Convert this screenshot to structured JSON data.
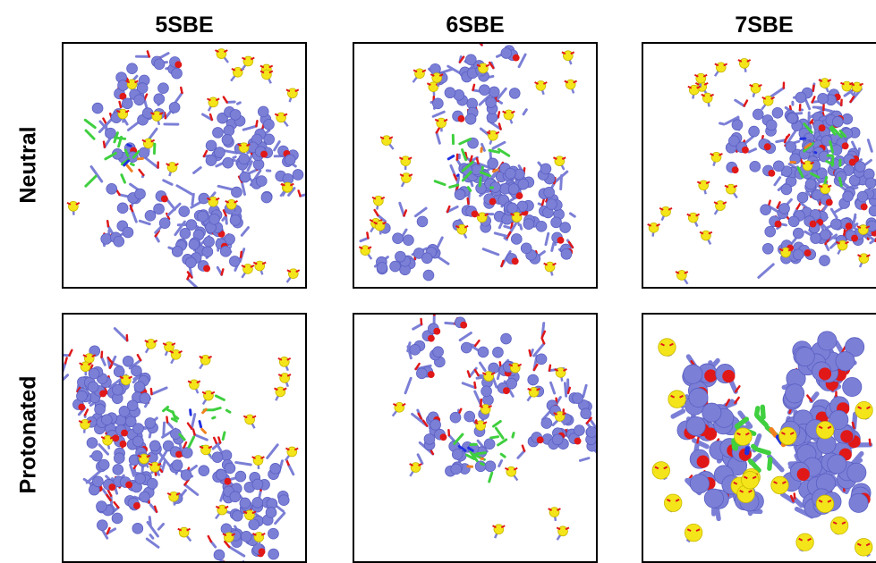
{
  "columns": [
    "5SBE",
    "6SBE",
    "7SBE"
  ],
  "rows": [
    "Neutral",
    "Protonated"
  ],
  "colors": {
    "carbon_bead": "#7b7fd6",
    "carbon_bead_dark": "#5a5fc2",
    "oxygen": "#e01818",
    "sulfur": "#f3e51a",
    "ligand": "#3fcf3f",
    "phosphate": "#f08020",
    "nitrogen": "#2030e0",
    "hydrogen": "#f0f0f0",
    "border": "#000000"
  },
  "panels": [
    {
      "id": "neutral-5sbe",
      "row": "Neutral",
      "column": "5SBE"
    },
    {
      "id": "neutral-6sbe",
      "row": "Neutral",
      "column": "6SBE"
    },
    {
      "id": "neutral-7sbe",
      "row": "Neutral",
      "column": "7SBE"
    },
    {
      "id": "protonated-5sbe",
      "row": "Protonated",
      "column": "5SBE"
    },
    {
      "id": "protonated-6sbe",
      "row": "Protonated",
      "column": "6SBE"
    },
    {
      "id": "protonated-7sbe",
      "row": "Protonated",
      "column": "7SBE"
    }
  ]
}
